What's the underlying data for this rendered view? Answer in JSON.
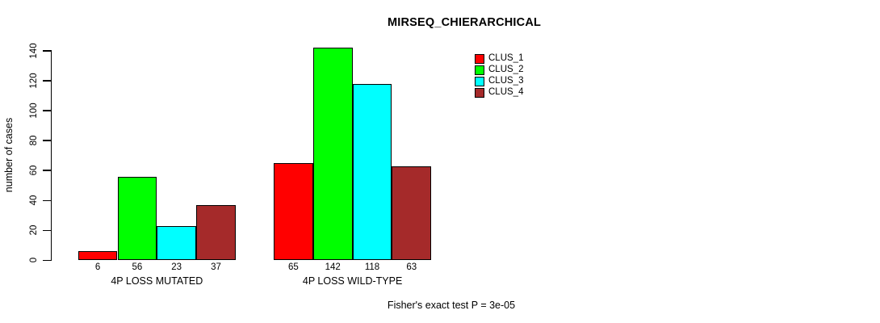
{
  "title": "MIRSEQ_CHIERARCHICAL",
  "chart_data": {
    "type": "bar",
    "title": "MIRSEQ_CHIERARCHICAL",
    "xlabel": "",
    "ylabel": "number of cases",
    "ylim": [
      0,
      140
    ],
    "yticks": [
      0,
      20,
      40,
      60,
      80,
      100,
      120,
      140
    ],
    "grid": false,
    "legend_position": "top-right-inside",
    "categories": [
      "4P LOSS MUTATED",
      "4P LOSS WILD-TYPE"
    ],
    "series": [
      {
        "name": "CLUS_1",
        "color": "#FF0000",
        "values": [
          6,
          65
        ]
      },
      {
        "name": "CLUS_2",
        "color": "#00FF00",
        "values": [
          56,
          142
        ]
      },
      {
        "name": "CLUS_3",
        "color": "#00FFFF",
        "values": [
          23,
          118
        ]
      },
      {
        "name": "CLUS_4",
        "color": "#A52A2A",
        "values": [
          37,
          63
        ]
      }
    ],
    "bar_value_labels_shown": true,
    "annotation": "Fisher's exact test P = 3e-05"
  },
  "colors": {
    "background": "#FFFFFF",
    "axis": "#000000",
    "text": "#000000",
    "bar_border": "#000000"
  }
}
